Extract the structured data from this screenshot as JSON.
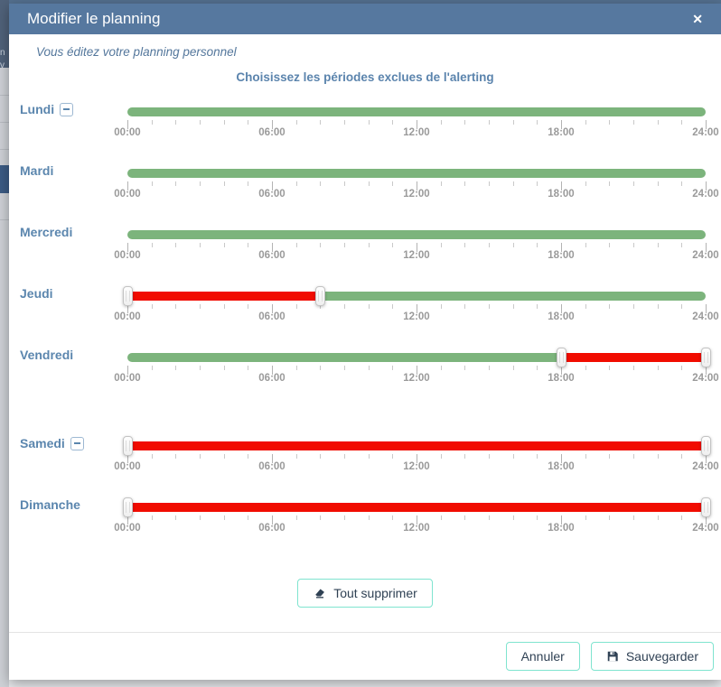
{
  "background": {
    "fragments": [
      "n",
      "v"
    ]
  },
  "modal": {
    "title": "Modifier le planning",
    "close_glyph": "✕",
    "subtitle": "Vous éditez votre planning personnel",
    "heading": "Choisissez les périodes exclues de l'alerting",
    "clear_all_label": "Tout supprimer",
    "cancel_label": "Annuler",
    "save_label": "Sauvegarder"
  },
  "colors": {
    "included": "#7cb47c",
    "excluded": "#f10c00",
    "accent_border": "#7fe4cf",
    "header_bg": "#56789f",
    "day_label": "#5b86ae"
  },
  "slider": {
    "hours_start": 0,
    "hours_end": 24,
    "major_tick_every": 6,
    "minor_tick_interval_hours": 1,
    "tick_labels": [
      "00:00",
      "06:00",
      "12:00",
      "18:00",
      "24:00"
    ]
  },
  "days": [
    {
      "label": "Lundi",
      "has_remove_icon": true,
      "segments": [
        {
          "from": 0,
          "to": 24,
          "type": "included"
        }
      ],
      "handles": []
    },
    {
      "label": "Mardi",
      "has_remove_icon": false,
      "segments": [
        {
          "from": 0,
          "to": 24,
          "type": "included"
        }
      ],
      "handles": []
    },
    {
      "label": "Mercredi",
      "has_remove_icon": false,
      "segments": [
        {
          "from": 0,
          "to": 24,
          "type": "included"
        }
      ],
      "handles": []
    },
    {
      "label": "Jeudi",
      "has_remove_icon": false,
      "segments": [
        {
          "from": 0,
          "to": 8,
          "type": "excluded"
        },
        {
          "from": 8,
          "to": 24,
          "type": "included"
        }
      ],
      "handles": [
        0,
        8
      ]
    },
    {
      "label": "Vendredi",
      "has_remove_icon": false,
      "segments": [
        {
          "from": 0,
          "to": 18,
          "type": "included"
        },
        {
          "from": 18,
          "to": 24,
          "type": "excluded"
        }
      ],
      "handles": [
        18,
        24
      ]
    },
    {
      "label": "Samedi",
      "has_remove_icon": true,
      "extra_gap": true,
      "segments": [
        {
          "from": 0,
          "to": 24,
          "type": "excluded"
        }
      ],
      "handles": [
        0,
        24
      ]
    },
    {
      "label": "Dimanche",
      "has_remove_icon": false,
      "segments": [
        {
          "from": 0,
          "to": 24,
          "type": "excluded"
        }
      ],
      "handles": [
        0,
        24
      ]
    }
  ]
}
